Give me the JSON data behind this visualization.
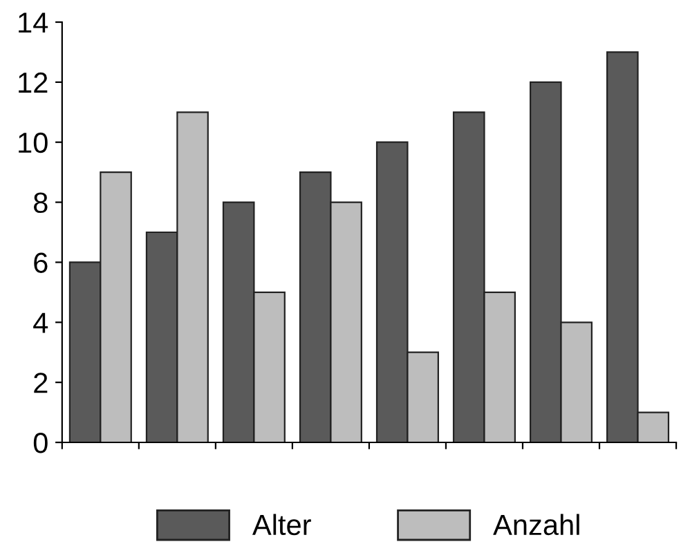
{
  "chart_data": {
    "type": "bar",
    "categories": [
      null,
      null,
      null,
      null,
      null,
      null,
      null,
      null
    ],
    "series": [
      {
        "name": "Alter",
        "color": "#5a5a5a",
        "values": [
          6,
          7,
          8,
          9,
          10,
          11,
          12,
          13
        ]
      },
      {
        "name": "Anzahl",
        "color": "#bdbdbd",
        "values": [
          9,
          11,
          5,
          8,
          3,
          5,
          4,
          1
        ]
      }
    ],
    "ylim": [
      0,
      14
    ],
    "yticks": [
      0,
      2,
      4,
      6,
      8,
      10,
      12,
      14
    ],
    "grid": false,
    "legend": "bottom"
  }
}
